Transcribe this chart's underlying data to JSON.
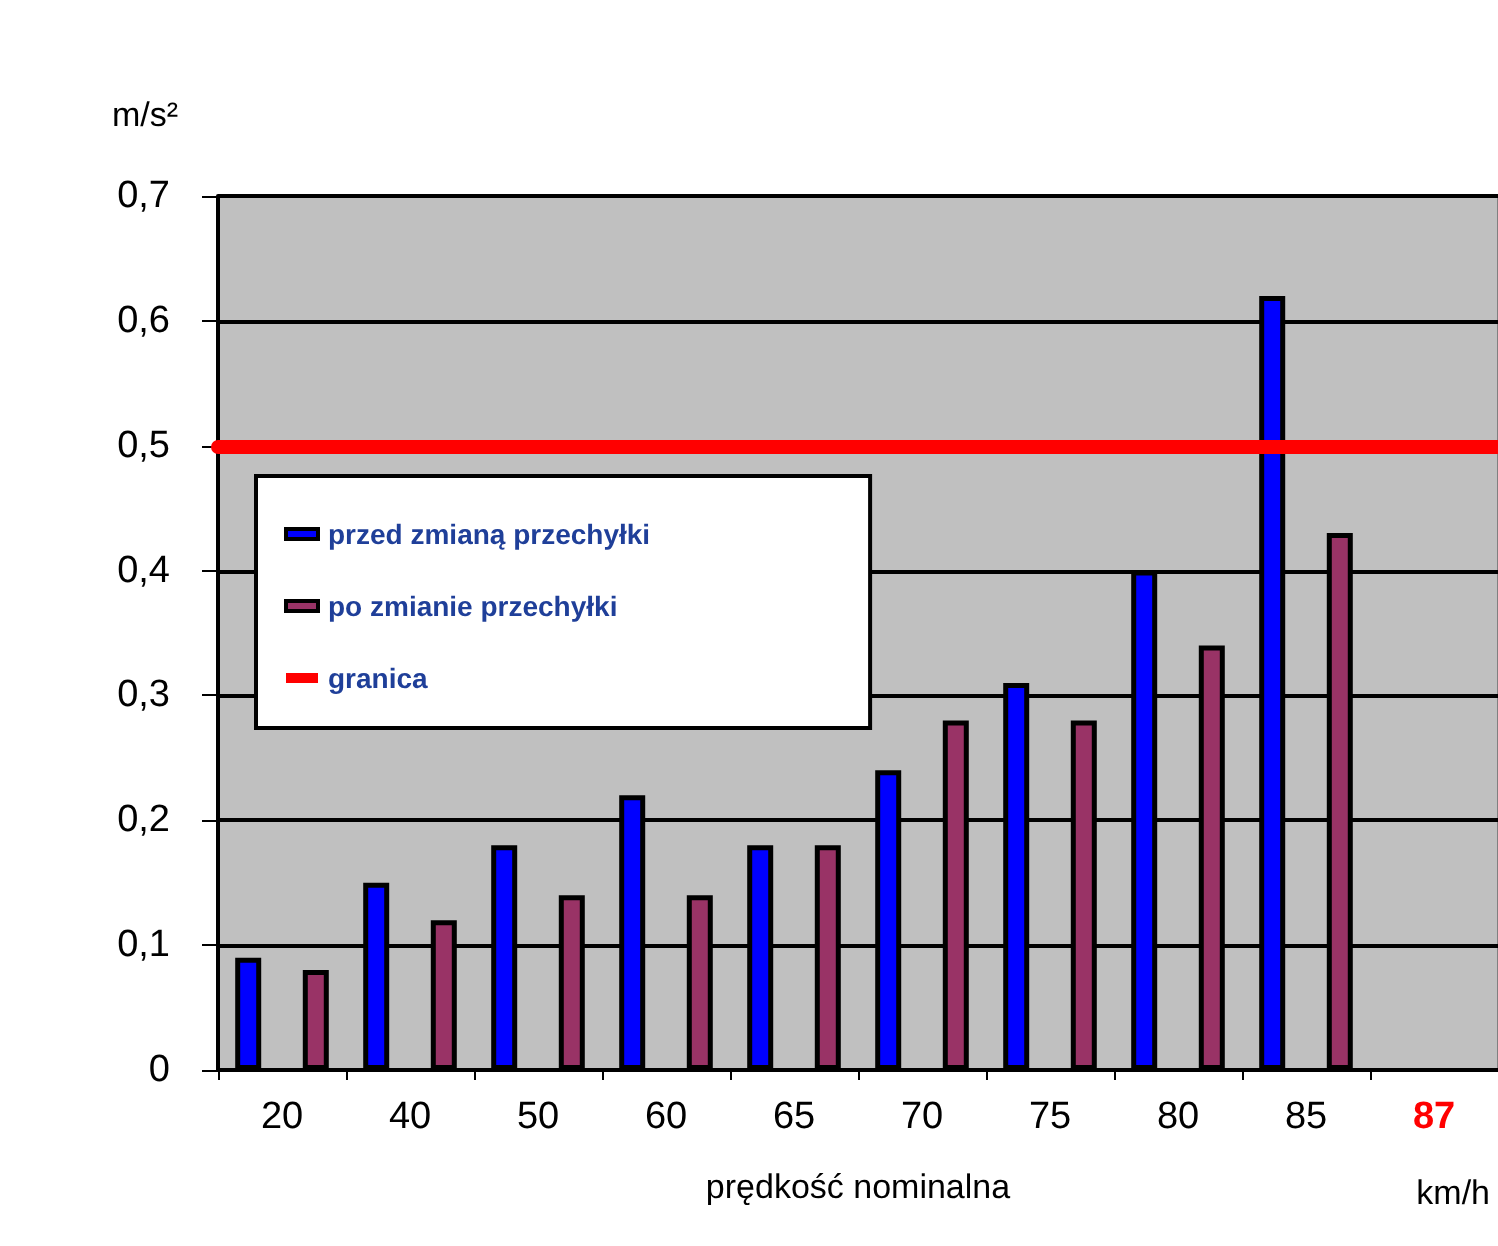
{
  "chart_data": {
    "type": "bar",
    "xlabel": "prędkość nominalna",
    "ylabel": "m/s²",
    "categories": [
      "20",
      "40",
      "50",
      "60",
      "65",
      "70",
      "75",
      "80",
      "85",
      "87"
    ],
    "series": [
      {
        "name": "przed zmianą przechyłki",
        "color": "#0000ff",
        "values": [
          0.09,
          0.15,
          0.18,
          0.22,
          0.18,
          0.24,
          0.31,
          0.4,
          0.62,
          null
        ]
      },
      {
        "name": "po zmianie przechyłki",
        "color": "#993366",
        "values": [
          0.08,
          0.12,
          0.14,
          0.14,
          0.18,
          0.28,
          0.28,
          0.34,
          0.43,
          null
        ]
      }
    ],
    "ylim": [
      0,
      0.7
    ],
    "yticks": [
      0,
      {
        "value": 0.1,
        "label": "0,1"
      },
      {
        "value": 0.2,
        "label": "0,2"
      },
      {
        "value": 0.3,
        "label": "0,3"
      },
      {
        "value": 0.4,
        "label": "0,4"
      },
      {
        "value": 0.5,
        "label": "0,5"
      },
      {
        "value": 0.6,
        "label": "0,6"
      },
      {
        "value": 0.7,
        "label": "0,7"
      }
    ],
    "ref_lines": [
      {
        "axis": "y",
        "value": 0.5,
        "label": "granica",
        "color": "#ff0000"
      }
    ],
    "annotations": [
      "km/h"
    ],
    "grid": "y",
    "legend": "top left"
  }
}
